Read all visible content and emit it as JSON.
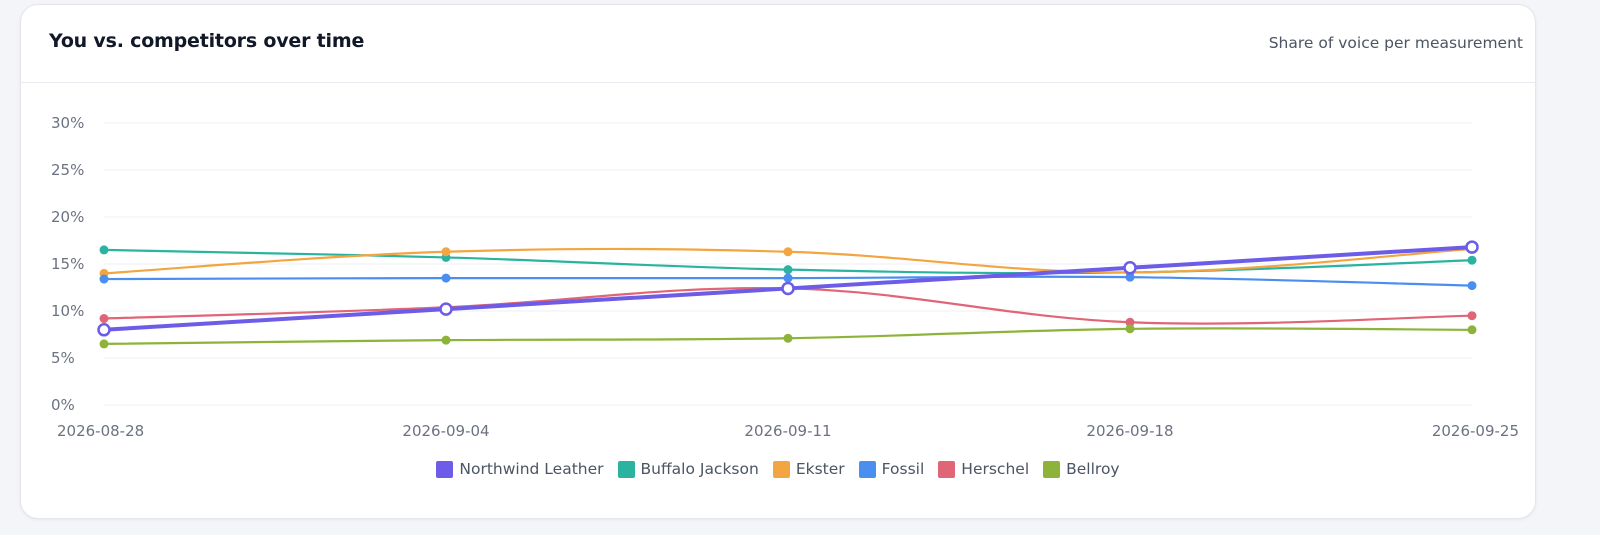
{
  "header": {
    "title": "You vs. competitors over time",
    "subtitle": "Share of voice per measurement"
  },
  "chart_data": {
    "type": "line",
    "x": [
      "2026-08-28",
      "2026-09-04",
      "2026-09-11",
      "2026-09-18",
      "2026-09-25"
    ],
    "ylim": [
      0,
      30
    ],
    "y_ticks": [
      "0%",
      "5%",
      "10%",
      "15%",
      "20%",
      "25%",
      "30%"
    ],
    "y_tick_values": [
      0,
      5,
      10,
      15,
      20,
      25,
      30
    ],
    "grid": true,
    "legend_position": "bottom-center",
    "series": [
      {
        "name": "Buffalo Jackson",
        "color": "#2bb3a0",
        "values": [
          16.5,
          15.7,
          14.4,
          14.1,
          15.4
        ],
        "highlight": false
      },
      {
        "name": "Ekster",
        "color": "#f2a540",
        "values": [
          14.0,
          16.3,
          16.3,
          14.1,
          16.6
        ],
        "highlight": false
      },
      {
        "name": "Fossil",
        "color": "#4a8ef0",
        "values": [
          13.4,
          13.5,
          13.5,
          13.6,
          12.7
        ],
        "highlight": false
      },
      {
        "name": "Herschel",
        "color": "#e06576",
        "values": [
          9.2,
          10.4,
          12.4,
          8.8,
          9.5
        ],
        "highlight": false
      },
      {
        "name": "Bellroy",
        "color": "#8db33a",
        "values": [
          6.5,
          6.9,
          7.1,
          8.1,
          8.0
        ],
        "highlight": false
      },
      {
        "name": "Northwind Leather",
        "color": "#6c5ce7",
        "values": [
          8.0,
          10.2,
          12.4,
          14.6,
          16.8
        ],
        "highlight": true
      }
    ],
    "legend_order": [
      "Northwind Leather",
      "Buffalo Jackson",
      "Ekster",
      "Fossil",
      "Herschel",
      "Bellroy"
    ]
  }
}
